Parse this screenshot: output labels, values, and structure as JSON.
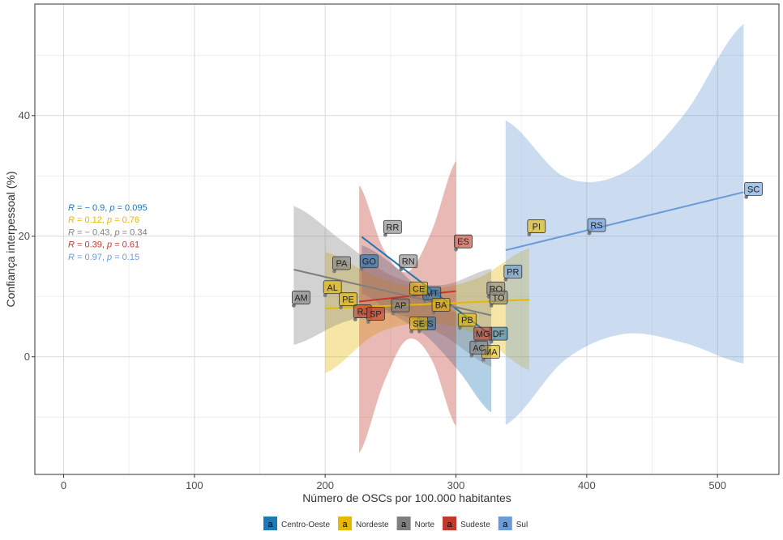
{
  "chart_data": {
    "type": "scatter",
    "xlabel": "Número de OSCs por 100.000 habitantes",
    "ylabel": "Confiança interpessoal (%)",
    "xlim": [
      -22,
      547
    ],
    "ylim": [
      -19.5,
      58.5
    ],
    "x_ticks": [
      0,
      100,
      200,
      300,
      400,
      500
    ],
    "y_ticks": [
      0,
      20,
      40
    ],
    "grid": true,
    "legend_position": "bottom",
    "legend_key_glyph": "a",
    "groups": [
      {
        "name": "Centro-Oeste",
        "color": "#1F77B4",
        "points": [
          {
            "label": "GO",
            "x": 228,
            "y": 14.5
          },
          {
            "label": "MT",
            "x": 276,
            "y": 9.2
          },
          {
            "label": "MS",
            "x": 272,
            "y": 4.2
          },
          {
            "label": "DF",
            "x": 327,
            "y": 2.5
          }
        ],
        "fit": {
          "intercept": 57.6,
          "slope": -0.1654,
          "x_range": [
            228,
            327
          ]
        },
        "band": {
          "lower": [
            10.5,
            6.9,
            3.4,
            -2.4,
            -9.2
          ],
          "upper": [
            18.5,
            15.1,
            10.2,
            7.0,
            3.2
          ]
        },
        "stat": {
          "R": "− 0.9",
          "p": "0.095"
        }
      },
      {
        "name": "Nordeste",
        "color": "#E6B800",
        "points": [
          {
            "label": "AL",
            "x": 200,
            "y": 10.2
          },
          {
            "label": "PE",
            "x": 212,
            "y": 8.2
          },
          {
            "label": "CE",
            "x": 266,
            "y": 10.0
          },
          {
            "label": "BA",
            "x": 283,
            "y": 7.3
          },
          {
            "label": "SE",
            "x": 266,
            "y": 4.2
          },
          {
            "label": "PB",
            "x": 303,
            "y": 4.8
          },
          {
            "label": "MA",
            "x": 321,
            "y": -0.5
          },
          {
            "label": "PI",
            "x": 356,
            "y": 20.3
          }
        ],
        "fit": {
          "intercept": 6.1,
          "slope": 0.0095,
          "x_range": [
            200,
            356
          ]
        },
        "band": {
          "lower": [
            -2.7,
            3.8,
            5.6,
            3.6,
            -2.2
          ],
          "upper": [
            17.4,
            13.3,
            11.4,
            13.1,
            18.0
          ]
        },
        "stat": {
          "R": "0.12",
          "p": "0.76"
        }
      },
      {
        "name": "Norte",
        "color": "#7F7F7F",
        "points": [
          {
            "label": "AM",
            "x": 176,
            "y": 8.5
          },
          {
            "label": "PA",
            "x": 207,
            "y": 14.2
          },
          {
            "label": "RR",
            "x": 246,
            "y": 20.2
          },
          {
            "label": "RN",
            "x": 258,
            "y": 14.5
          },
          {
            "label": "AP",
            "x": 252,
            "y": 7.2
          },
          {
            "label": "RO",
            "x": 325,
            "y": 10.0
          },
          {
            "label": "TO",
            "x": 327,
            "y": 8.5
          },
          {
            "label": "AC",
            "x": 312,
            "y": 0.2
          }
        ],
        "fit": {
          "intercept": 23.3,
          "slope": -0.0502,
          "x_range": [
            176,
            327
          ]
        },
        "band": {
          "lower": [
            2.0,
            5.7,
            7.2,
            3.7,
            -1.6
          ],
          "upper": [
            25.0,
            19.1,
            13.4,
            11.9,
            14.6
          ]
        },
        "stat": {
          "R": "− 0.43",
          "p": "0.34"
        }
      },
      {
        "name": "Sudeste",
        "color": "#C0392B",
        "points": [
          {
            "label": "RJ",
            "x": 223,
            "y": 6.2
          },
          {
            "label": "SP",
            "x": 233,
            "y": 5.8
          },
          {
            "label": "ES",
            "x": 300,
            "y": 17.8
          },
          {
            "label": "MG",
            "x": 315,
            "y": 2.5
          }
        ],
        "fit": {
          "intercept": 3.9,
          "slope": 0.0233,
          "x_range": [
            226,
            300
          ]
        },
        "band": {
          "lower": [
            -16.0,
            -4.5,
            2.9,
            -0.5,
            -11.5
          ],
          "upper": [
            28.5,
            17.9,
            14.1,
            20.9,
            32.5
          ]
        },
        "stat": {
          "R": "0.39",
          "p": "0.61"
        }
      },
      {
        "name": "Sul",
        "color": "#6A9BD8",
        "points": [
          {
            "label": "PR",
            "x": 338,
            "y": 12.8
          },
          {
            "label": "RS",
            "x": 402,
            "y": 20.5
          },
          {
            "label": "SC",
            "x": 522,
            "y": 26.5
          }
        ],
        "fit": {
          "intercept": -0.2,
          "slope": 0.0529,
          "x_range": [
            338,
            520
          ]
        },
        "band": {
          "lower": [
            -11.3,
            -0.5,
            3.8,
            2.3,
            -1.1
          ],
          "upper": [
            39.2,
            29.8,
            30.6,
            40.2,
            55.2
          ]
        },
        "stat": {
          "R": "0.97",
          "p": "0.15"
        }
      }
    ]
  }
}
